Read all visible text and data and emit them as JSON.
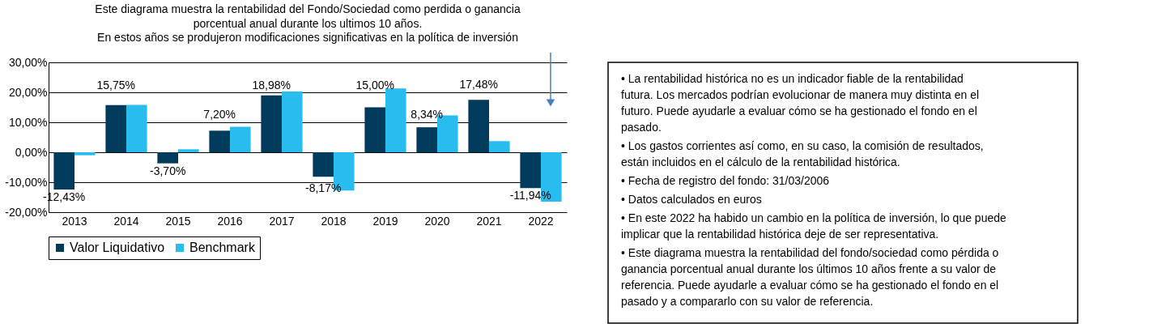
{
  "chart_data": [
    {
      "type": "bar",
      "title": "Este diagrama muestra la rentabilidad del Fondo/Sociedad como perdida o ganancia porcentual anual durante los ultimos 10 años.",
      "subtitle": "En estos años se produjeron modificaciones significativas en la política de inversión",
      "categories": [
        "2013",
        "2014",
        "2015",
        "2016",
        "2017",
        "2018",
        "2019",
        "2020",
        "2021",
        "2022"
      ],
      "series": [
        {
          "name": "Valor Liquidativo",
          "color": "#003b5c",
          "values": [
            -12.43,
            15.75,
            -3.7,
            7.2,
            18.98,
            -8.17,
            15.0,
            8.34,
            17.48,
            -11.94
          ],
          "value_labels": [
            "-12,43%",
            "15,75%",
            "-3,70%",
            "7,20%",
            "18,98%",
            "-8,17%",
            "15,00%",
            "8,34%",
            "17,48%",
            "-11,94%"
          ]
        },
        {
          "name": "Benchmark",
          "color": "#29bdef",
          "values": [
            -1.0,
            15.8,
            1.0,
            8.5,
            20.3,
            -12.8,
            21.3,
            12.3,
            3.7,
            -16.5
          ]
        }
      ],
      "ylim": [
        -20,
        30
      ],
      "yticks": [
        {
          "value": -20,
          "label": "-20,00%"
        },
        {
          "value": -10,
          "label": "-10,00%"
        },
        {
          "value": 0,
          "label": "0,00%"
        },
        {
          "value": 10,
          "label": "10,00%"
        },
        {
          "value": 20,
          "label": "20,00%"
        },
        {
          "value": 30,
          "label": "30,00%"
        }
      ],
      "grid": "y",
      "legend": "bottom"
    },
    {
      "type": "other",
      "annotations": [
        "• La rentabilidad histórica no es un indicador fiable de la rentabilidad futura. Los mercados podrían evolucionar de manera muy distinta en el futuro. Puede ayudarle a evaluar cómo se ha gestionado el fondo en el pasado.",
        "• Los gastos corrientes así como, en su caso, la comisión de resultados, están incluidos en el cálculo de la rentabilidad histórica.",
        "• Fecha de registro del fondo: 31/03/2006",
        "• Datos calculados en euros",
        "• En este 2022 ha habido un cambio en la política de inversión, lo que puede implicar que la rentabilidad histórica deje de ser representativa.",
        "• Este diagrama muestra la rentabilidad del fondo/sociedad como pérdida o ganancia porcentual anual durante los últimos 10 años frente a su valor de referencia. Puede ayudarle a evaluar cómo se ha gestionado el fondo en el pasado y a compararlo con su valor de referencia."
      ]
    }
  ]
}
